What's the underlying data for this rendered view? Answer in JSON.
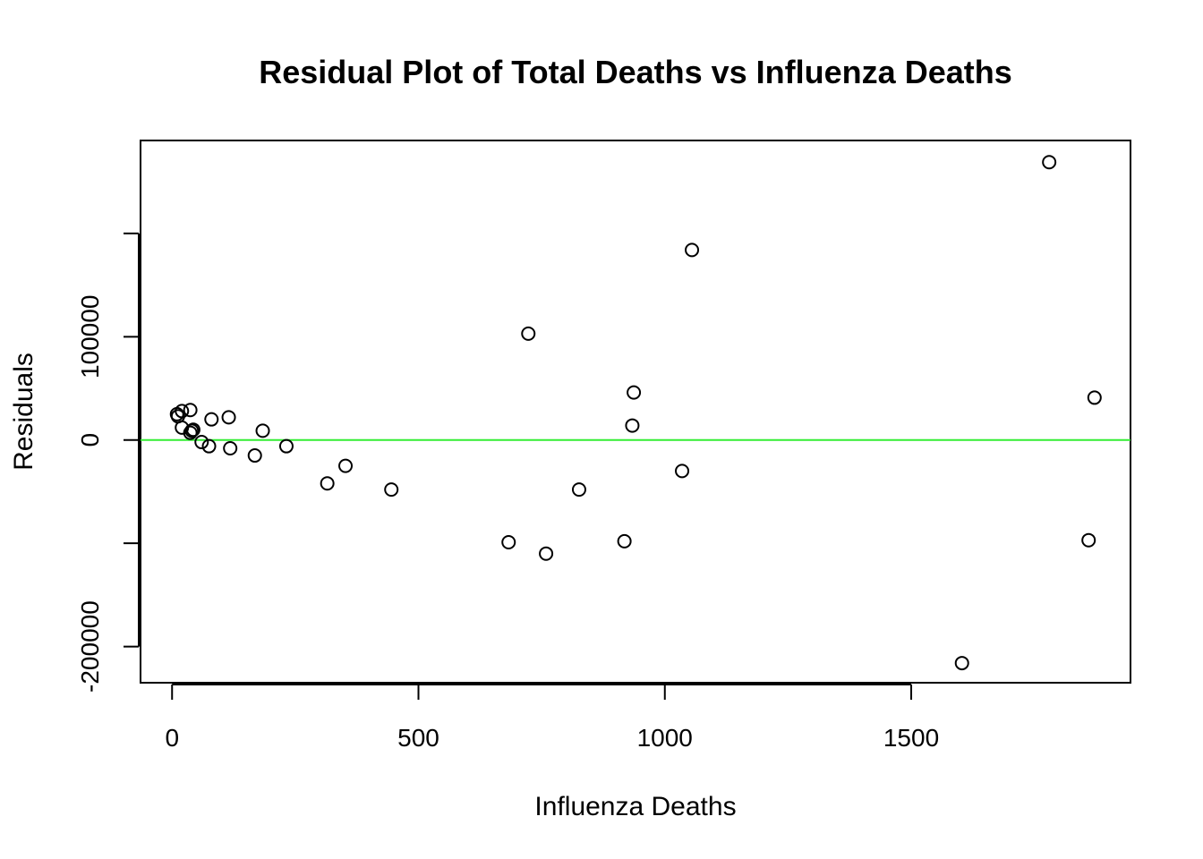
{
  "chart_data": {
    "type": "scatter",
    "title": "Residual Plot of Total Deaths vs Influenza Deaths",
    "xlabel": "Influenza Deaths",
    "ylabel": "Residuals",
    "xlim": [
      -64,
      1945
    ],
    "ylim": [
      -235000,
      290000
    ],
    "x_ticks": [
      {
        "value": 0,
        "label": "0"
      },
      {
        "value": 500,
        "label": "500"
      },
      {
        "value": 1000,
        "label": "1000"
      },
      {
        "value": 1500,
        "label": "1500"
      }
    ],
    "y_ticks": [
      {
        "value": -200000,
        "label": "-200000"
      },
      {
        "value": -100000,
        "label": ""
      },
      {
        "value": 0,
        "label": "0"
      },
      {
        "value": 100000,
        "label": "100000"
      },
      {
        "value": 200000,
        "label": ""
      }
    ],
    "reference_line": {
      "y": 0,
      "color": "#33ee33"
    },
    "point_color": "#000000",
    "grid": false,
    "points": [
      {
        "x": 10,
        "y": 25000
      },
      {
        "x": 12,
        "y": 23000
      },
      {
        "x": 20,
        "y": 28000
      },
      {
        "x": 20,
        "y": 12000
      },
      {
        "x": 37,
        "y": 29000
      },
      {
        "x": 37,
        "y": 7000
      },
      {
        "x": 40,
        "y": 9000
      },
      {
        "x": 43,
        "y": 10000
      },
      {
        "x": 60,
        "y": -2000
      },
      {
        "x": 75,
        "y": -6000
      },
      {
        "x": 80,
        "y": 20000
      },
      {
        "x": 115,
        "y": 22000
      },
      {
        "x": 118,
        "y": -8000
      },
      {
        "x": 168,
        "y": -15000
      },
      {
        "x": 184,
        "y": 9000
      },
      {
        "x": 232,
        "y": -6000
      },
      {
        "x": 315,
        "y": -42000
      },
      {
        "x": 352,
        "y": -25000
      },
      {
        "x": 445,
        "y": -48000
      },
      {
        "x": 683,
        "y": -99000
      },
      {
        "x": 723,
        "y": 103000
      },
      {
        "x": 759,
        "y": -110000
      },
      {
        "x": 826,
        "y": -48000
      },
      {
        "x": 918,
        "y": -98000
      },
      {
        "x": 934,
        "y": 14000
      },
      {
        "x": 937,
        "y": 46000
      },
      {
        "x": 1035,
        "y": -30000
      },
      {
        "x": 1055,
        "y": 184000
      },
      {
        "x": 1603,
        "y": -216000
      },
      {
        "x": 1780,
        "y": 269000
      },
      {
        "x": 1860,
        "y": -97000
      },
      {
        "x": 1872,
        "y": 41000
      }
    ]
  }
}
